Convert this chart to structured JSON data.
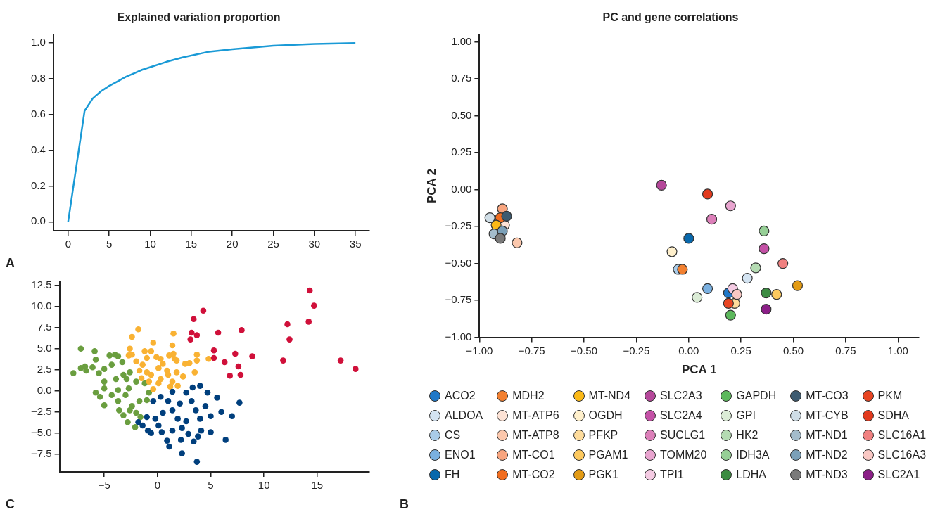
{
  "chart_data": [
    {
      "type": "line",
      "title": "Explained variation proportion",
      "annotations": [
        "A"
      ],
      "x": [
        0,
        1,
        2,
        3,
        4,
        5,
        6,
        7,
        8,
        9,
        10,
        12,
        14,
        17,
        20,
        25,
        30,
        35
      ],
      "values": [
        0,
        0.31,
        0.62,
        0.69,
        0.73,
        0.76,
        0.785,
        0.81,
        0.83,
        0.85,
        0.865,
        0.895,
        0.92,
        0.95,
        0.965,
        0.985,
        0.995,
        1.0
      ],
      "color": "#1a9ad6",
      "marker": "none",
      "grid": false,
      "xlim": [
        -1.8,
        36.7
      ],
      "xticks": [
        0,
        5,
        10,
        15,
        20,
        25,
        30,
        35
      ],
      "ylim": [
        -0.05,
        1.047
      ],
      "yticks": [
        {
          "value": 0,
          "label": "0.0"
        },
        0.2,
        0.4,
        0.6,
        0.8,
        {
          "value": 1,
          "label": "1.0"
        }
      ]
    },
    {
      "type": "scatter",
      "title": "PC and gene correlations",
      "xlabel": "PCA 1",
      "ylabel": "PCA 2",
      "annotations": [
        "B"
      ],
      "marker": "circle",
      "grid": false,
      "legend": "bottom",
      "xlim": [
        -1,
        1.1
      ],
      "xticks": [
        {
          "value": -1,
          "label": "−1.00"
        },
        {
          "value": -0.75,
          "label": "−0.75"
        },
        {
          "value": -0.5,
          "label": "−0.50"
        },
        {
          "value": -0.25,
          "label": "−0.25"
        },
        {
          "value": 0,
          "label": "0.00"
        },
        {
          "value": 0.25,
          "label": "0.25"
        },
        {
          "value": 0.5,
          "label": "0.50"
        },
        {
          "value": 0.75,
          "label": "0.75"
        },
        {
          "value": 1,
          "label": "1.00"
        }
      ],
      "ylim": [
        -1,
        1.05
      ],
      "yticks": [
        {
          "value": -1,
          "label": "−1.00"
        },
        {
          "value": -0.75,
          "label": "−0.75"
        },
        {
          "value": -0.5,
          "label": "−0.50"
        },
        {
          "value": -0.25,
          "label": "−0.25"
        },
        {
          "value": 0,
          "label": "0.00"
        },
        {
          "value": 0.25,
          "label": "0.25"
        },
        {
          "value": 0.5,
          "label": "0.50"
        },
        {
          "value": 0.75,
          "label": "0.75"
        },
        {
          "value": 1,
          "label": "1.00"
        }
      ],
      "series": [
        {
          "name": "ACO2",
          "color": "#1f78c8",
          "x": [
            0.19
          ],
          "values": [
            -0.7
          ]
        },
        {
          "name": "ALDOA",
          "color": "#d4e4f2",
          "x": [
            0.28
          ],
          "values": [
            -0.6
          ]
        },
        {
          "name": "CS",
          "color": "#a9cbe8",
          "x": [
            -0.05
          ],
          "values": [
            -0.54
          ]
        },
        {
          "name": "ENO1",
          "color": "#7ab0e0",
          "x": [
            0.09
          ],
          "values": [
            -0.67
          ]
        },
        {
          "name": "FH",
          "color": "#0868ac",
          "x": [
            0.0
          ],
          "values": [
            -0.33
          ]
        },
        {
          "name": "MDH2",
          "color": "#f28030",
          "x": [
            -0.03
          ],
          "values": [
            -0.54
          ]
        },
        {
          "name": "MT-ATP6",
          "color": "#fde3d6",
          "x": [
            -0.88
          ],
          "values": [
            -0.24
          ]
        },
        {
          "name": "MT-ATP8",
          "color": "#fcc8ad",
          "x": [
            -0.82
          ],
          "values": [
            -0.36
          ]
        },
        {
          "name": "MT-CO1",
          "color": "#f8a57f",
          "x": [
            -0.89
          ],
          "values": [
            -0.13
          ]
        },
        {
          "name": "MT-CO2",
          "color": "#f16d1f",
          "x": [
            -0.9
          ],
          "values": [
            -0.19
          ]
        },
        {
          "name": "MT-ND4",
          "color": "#fbb917",
          "x": [
            -0.92
          ],
          "values": [
            -0.24
          ]
        },
        {
          "name": "OGDH",
          "color": "#fff0cc",
          "x": [
            -0.08
          ],
          "values": [
            -0.42
          ]
        },
        {
          "name": "PFKP",
          "color": "#fedc9c",
          "x": [
            0.22
          ],
          "values": [
            -0.77
          ]
        },
        {
          "name": "PGAM1",
          "color": "#fdc95e",
          "x": [
            0.42
          ],
          "values": [
            -0.71
          ]
        },
        {
          "name": "PGK1",
          "color": "#e39b14",
          "x": [
            0.52
          ],
          "values": [
            -0.65
          ]
        },
        {
          "name": "SLC2A3",
          "color": "#b5479a",
          "x": [
            -0.13
          ],
          "values": [
            0.03
          ]
        },
        {
          "name": "SLC2A4",
          "color": "#c451a6",
          "x": [
            0.36
          ],
          "values": [
            -0.4
          ]
        },
        {
          "name": "SUCLG1",
          "color": "#dc7fb9",
          "x": [
            0.11
          ],
          "values": [
            -0.2
          ]
        },
        {
          "name": "TOMM20",
          "color": "#e8a4cf",
          "x": [
            0.2
          ],
          "values": [
            -0.11
          ]
        },
        {
          "name": "TPI1",
          "color": "#f4cbe3",
          "x": [
            0.21
          ],
          "values": [
            -0.67
          ]
        },
        {
          "name": "GAPDH",
          "color": "#5cb85c",
          "x": [
            0.2
          ],
          "values": [
            -0.85
          ]
        },
        {
          "name": "GPI",
          "color": "#dbecd6",
          "x": [
            0.04
          ],
          "values": [
            -0.73
          ]
        },
        {
          "name": "HK2",
          "color": "#b4dbb2",
          "x": [
            0.32
          ],
          "values": [
            -0.53
          ]
        },
        {
          "name": "IDH3A",
          "color": "#96cf96",
          "x": [
            0.36
          ],
          "values": [
            -0.28
          ]
        },
        {
          "name": "LDHA",
          "color": "#3c8c42",
          "x": [
            0.37
          ],
          "values": [
            -0.7
          ]
        },
        {
          "name": "MT-CO3",
          "color": "#3d5b70",
          "x": [
            -0.87
          ],
          "values": [
            -0.18
          ]
        },
        {
          "name": "MT-CYB",
          "color": "#cfdde6",
          "x": [
            -0.95
          ],
          "values": [
            -0.19
          ]
        },
        {
          "name": "MT-ND1",
          "color": "#a4bccb",
          "x": [
            -0.93
          ],
          "values": [
            -0.3
          ]
        },
        {
          "name": "MT-ND2",
          "color": "#7ba0b8",
          "x": [
            -0.89
          ],
          "values": [
            -0.28
          ]
        },
        {
          "name": "MT-ND3",
          "color": "#7a7a7a",
          "x": [
            -0.9
          ],
          "values": [
            -0.33
          ]
        },
        {
          "name": "PKM",
          "color": "#e84522",
          "x": [
            0.19
          ],
          "values": [
            -0.77
          ]
        },
        {
          "name": "SDHA",
          "color": "#e23a1e",
          "x": [
            0.09
          ],
          "values": [
            -0.03
          ]
        },
        {
          "name": "SLC16A1",
          "color": "#f08080",
          "x": [
            0.45
          ],
          "values": [
            -0.5
          ]
        },
        {
          "name": "SLC16A3",
          "color": "#f9c8c4",
          "x": [
            0.23
          ],
          "values": [
            -0.71
          ]
        },
        {
          "name": "SLC2A1",
          "color": "#8b1f87",
          "x": [
            0.37
          ],
          "values": [
            -0.81
          ]
        }
      ]
    },
    {
      "type": "scatter",
      "annotations": [
        "C"
      ],
      "marker": "circle",
      "grid": false,
      "xlim": [
        -9.2,
        19.9
      ],
      "xticks": [
        {
          "value": -5,
          "label": "−5"
        },
        0,
        5,
        10,
        15
      ],
      "ylim": [
        -9.6,
        12.9
      ],
      "yticks": [
        {
          "value": -7.5,
          "label": "−7.5"
        },
        {
          "value": -5,
          "label": "−5.0"
        },
        {
          "value": -2.5,
          "label": "−2.5"
        },
        {
          "value": 0,
          "label": "0.0"
        },
        2.5,
        {
          "value": 5,
          "label": "5.0"
        },
        7.5,
        {
          "value": 10,
          "label": "10.0"
        },
        12.5
      ],
      "series": [
        {
          "color": "#6a9e3f",
          "x": [
            -7.2,
            -5.9,
            -5.8,
            -7.9,
            -7.2,
            -6.8,
            -6.1,
            -6.7,
            -5.5,
            -5.0,
            -4.5,
            -4.0,
            -3.7,
            -4.3,
            -3.3,
            -5.0,
            -5.0,
            -5.8,
            -5.4,
            -5.0,
            -4.3,
            -3.9,
            -3.2,
            -2.6,
            -3.7,
            -3.6,
            -3.2,
            -2.8,
            -2.1,
            -1.6,
            -2.4,
            -1.7,
            -1.0,
            -0.8,
            -1.2,
            -2.0,
            -2.7,
            -3.0,
            -2.6,
            -2.0,
            -3.7,
            -2.9
          ],
          "values": [
            5.0,
            4.7,
            3.7,
            2.1,
            2.7,
            2.9,
            2.8,
            2.4,
            2.1,
            2.6,
            4.2,
            4.3,
            4.1,
            3.1,
            3.4,
            1.1,
            0.3,
            -0.2,
            -0.7,
            -1.7,
            -0.5,
            1.4,
            1.9,
            2.2,
            -1.2,
            -2.3,
            -2.9,
            -3.7,
            -4.3,
            -3.1,
            -1.8,
            -1.2,
            -1.1,
            -0.2,
            0.9,
            1.1,
            0.3,
            -0.5,
            -2.3,
            -2.6,
            0.1,
            1.4
          ]
        },
        {
          "color": "#f9b233",
          "x": [
            -1.8,
            -2.4,
            1.5,
            -0.4,
            1.4,
            -2.6,
            -1.2,
            -0.6,
            -2.7,
            -2.0,
            -1.0,
            0.3,
            1.1,
            1.5,
            1.6,
            3.7,
            4.8,
            3.7,
            2.6,
            3.0,
            3.5,
            2.4,
            -1.5,
            -1.7,
            0.1,
            0.9,
            1.8,
            -0.6,
            0.3,
            1.4,
            1.9,
            1.2,
            0.1,
            -0.8,
            -0.4,
            0.5,
            -1.4,
            -2.4,
            -1.0,
            1.0,
            -0.1,
            1.8
          ],
          "values": [
            7.3,
            6.4,
            6.8,
            5.7,
            5.4,
            5.0,
            4.7,
            4.7,
            4.2,
            3.5,
            3.9,
            3.8,
            4.2,
            4.4,
            3.8,
            4.3,
            3.8,
            3.6,
            3.2,
            3.3,
            2.2,
            1.7,
            1.5,
            2.4,
            2.7,
            2.4,
            2.2,
            1.9,
            1.4,
            1.1,
            0.6,
            0.5,
            0.9,
            1.1,
            0.2,
            3.2,
            3.1,
            4.3,
            2.2,
            1.9,
            4.0,
            3.6
          ]
        },
        {
          "color": "#d0103a",
          "x": [
            14.3,
            14.7,
            4.3,
            3.4,
            14.2,
            12.2,
            7.9,
            3.2,
            3.7,
            5.7,
            3.1,
            12.4,
            5.3,
            7.3,
            5.3,
            8.9,
            6.3,
            11.8,
            17.2,
            7.6,
            18.6,
            6.8,
            7.8
          ],
          "values": [
            11.9,
            10.1,
            9.5,
            8.5,
            8.2,
            7.9,
            7.2,
            6.9,
            6.6,
            6.9,
            6.1,
            6.1,
            4.8,
            4.4,
            3.9,
            4.1,
            3.4,
            3.6,
            3.6,
            2.9,
            2.6,
            1.8,
            1.9
          ]
        },
        {
          "color": "#003f7d",
          "x": [
            4.0,
            3.3,
            4.7,
            5.6,
            7.7,
            6.0,
            7.0,
            5.0,
            4.5,
            4.0,
            5.0,
            6.4,
            3.8,
            3.4,
            2.3,
            3.7,
            1.1,
            0.9,
            2.2,
            2.9,
            0.4,
            -0.6,
            -0.9,
            -1.4,
            -1.8,
            -1.0,
            -0.2,
            0.5,
            1.4,
            2.1,
            2.7,
            1.4,
            0.3,
            -0.4,
            1.0,
            1.9,
            2.7,
            3.6,
            2.3,
            1.4,
            0.1,
            4.1,
            3.2
          ],
          "values": [
            0.6,
            0.4,
            -0.2,
            -0.8,
            -1.4,
            -2.5,
            -3.0,
            -3.0,
            -1.8,
            -3.3,
            -4.9,
            -5.8,
            -5.4,
            -6.0,
            -7.4,
            -8.4,
            -6.6,
            -5.9,
            -5.8,
            -5.1,
            -4.9,
            -5.0,
            -4.7,
            -4.1,
            -3.7,
            -3.1,
            -3.3,
            -2.6,
            -2.3,
            -1.5,
            -0.2,
            -0.1,
            -0.7,
            -1.2,
            -1.2,
            -3.3,
            -3.6,
            -2.3,
            -4.4,
            -4.7,
            -4.1,
            -4.7,
            -1.2
          ]
        }
      ]
    }
  ]
}
